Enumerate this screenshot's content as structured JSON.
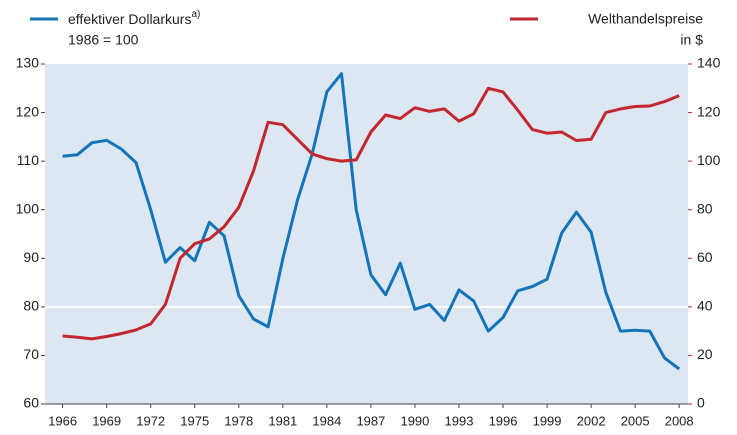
{
  "chart_data": {
    "type": "line",
    "x": [
      1966,
      1967,
      1968,
      1969,
      1970,
      1971,
      1972,
      1973,
      1974,
      1975,
      1976,
      1977,
      1978,
      1979,
      1980,
      1981,
      1982,
      1983,
      1984,
      1985,
      1986,
      1987,
      1988,
      1989,
      1990,
      1991,
      1992,
      1993,
      1994,
      1995,
      1996,
      1997,
      1998,
      1999,
      2000,
      2001,
      2002,
      2003,
      2004,
      2005,
      2006,
      2007,
      2008
    ],
    "series": [
      {
        "name": "effektiver Dollarkurs",
        "name_note": "a)",
        "unit": "1986 = 100",
        "color": "#1474b8",
        "axis": "y",
        "values": [
          111,
          111.3,
          113.8,
          114.3,
          112.5,
          109.7,
          100,
          89.2,
          92.2,
          89.5,
          97.4,
          94.6,
          82.3,
          77.5,
          75.9,
          89.9,
          102,
          111.5,
          124.3,
          128,
          100,
          86.6,
          82.5,
          89,
          79.5,
          80.5,
          77.2,
          83.5,
          81.2,
          75,
          77.8,
          83.3,
          84.2,
          85.7,
          95.2,
          99.5,
          95.4,
          83,
          75,
          75.2,
          75,
          69.5,
          67.2
        ]
      },
      {
        "name": "Welthandelspreise",
        "unit": "in $",
        "color": "#c1272d",
        "axis": "y2",
        "values": [
          28,
          27.5,
          26.8,
          27.8,
          29,
          30.5,
          33,
          41,
          60,
          66,
          68,
          73,
          81,
          96,
          116,
          115,
          109,
          103,
          101,
          100,
          100.5,
          112,
          119,
          117.5,
          122,
          120.5,
          121.5,
          116.5,
          119.5,
          130,
          128.5,
          121,
          113,
          111.5,
          112,
          108.5,
          109,
          120,
          121.5,
          122.5,
          122.7,
          124.5,
          127
        ]
      }
    ],
    "xlim": [
      1964.8,
      2008.6
    ],
    "xticks": [
      1966,
      1969,
      1972,
      1975,
      1978,
      1981,
      1984,
      1987,
      1990,
      1993,
      1996,
      1999,
      2002,
      2005,
      2008
    ],
    "ylim": [
      60,
      130
    ],
    "yticks": [
      60,
      70,
      80,
      90,
      100,
      110,
      120,
      130
    ],
    "y2lim": [
      0,
      140
    ],
    "y2ticks": [
      0,
      20,
      40,
      60,
      80,
      100,
      120,
      140
    ],
    "hline": 80,
    "background": "#dce7f2"
  }
}
